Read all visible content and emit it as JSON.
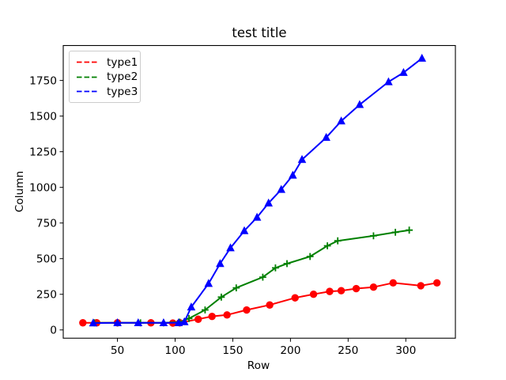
{
  "figure": {
    "background": "#ffffff",
    "text_color": "#000000"
  },
  "chart_data": {
    "type": "line",
    "title": "test title",
    "xlabel": "Row",
    "ylabel": "Column",
    "xlim": [
      3,
      343
    ],
    "ylim": [
      -58,
      1995
    ],
    "xticks": [
      50,
      100,
      150,
      200,
      250,
      300
    ],
    "yticks": [
      0,
      250,
      500,
      750,
      1000,
      1250,
      1500,
      1750
    ],
    "grid": false,
    "legend": {
      "position": "upper-left",
      "sample_linestyle": "dashed",
      "border_color": "#cccccc"
    },
    "series": [
      {
        "name": "type1",
        "color": "#ff0000",
        "marker": "circle",
        "linestyle": "solid",
        "x": [
          20,
          32,
          50,
          79,
          98,
          104,
          120,
          132,
          145,
          162,
          182,
          204,
          220,
          234,
          244,
          257,
          272,
          289,
          313,
          327
        ],
        "y": [
          50,
          50,
          50,
          50,
          48,
          50,
          75,
          95,
          105,
          140,
          175,
          225,
          250,
          270,
          275,
          290,
          300,
          330,
          310,
          330
        ]
      },
      {
        "name": "type2",
        "color": "#008000",
        "marker": "plus",
        "linestyle": "solid",
        "x": [
          30,
          50,
          70,
          90,
          104,
          112,
          126,
          140,
          153,
          176,
          187,
          197,
          217,
          232,
          241,
          272,
          291,
          303
        ],
        "y": [
          50,
          50,
          50,
          50,
          55,
          80,
          140,
          230,
          295,
          370,
          435,
          465,
          515,
          590,
          625,
          660,
          685,
          700
        ]
      },
      {
        "name": "type3",
        "color": "#0000ff",
        "marker": "triangle-up",
        "linestyle": "solid",
        "x": [
          29,
          50,
          68,
          90,
          103,
          108,
          114,
          129,
          139,
          148,
          160,
          171,
          181,
          192,
          202,
          210,
          231,
          244,
          260,
          285,
          298,
          314
        ],
        "y": [
          48,
          50,
          50,
          50,
          50,
          57,
          160,
          325,
          465,
          575,
          695,
          790,
          890,
          985,
          1085,
          1195,
          1350,
          1465,
          1580,
          1740,
          1805,
          1905
        ]
      }
    ]
  }
}
